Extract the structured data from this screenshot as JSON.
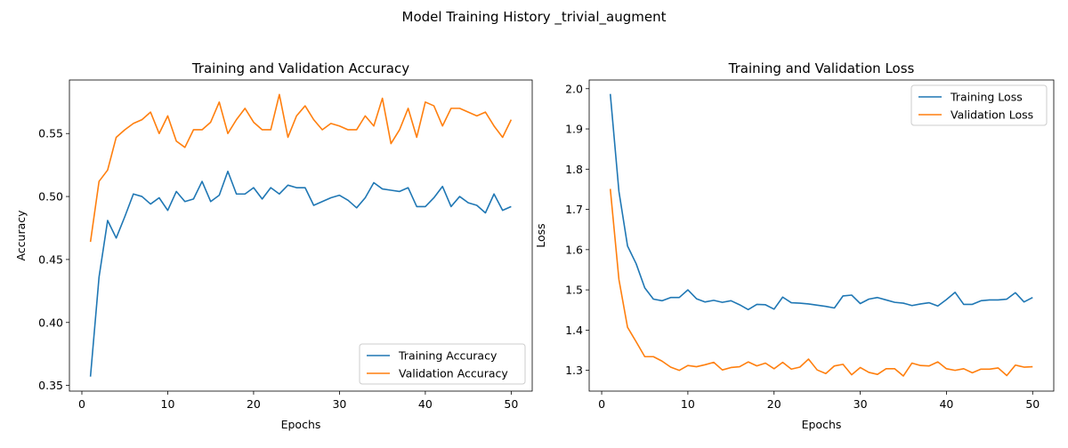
{
  "suptitle": "Model Training History _trivial_augment",
  "colors": {
    "training": "#1f77b4",
    "validation": "#ff7f0e"
  },
  "chart_data": [
    {
      "type": "line",
      "title": "Training and Validation Accuracy",
      "xlabel": "Epochs",
      "ylabel": "Accuracy",
      "xlim": [
        -1.45,
        52.45
      ],
      "ylim": [
        0.3455,
        0.5925
      ],
      "xticks": [
        0,
        10,
        20,
        30,
        40,
        50
      ],
      "yticks": [
        0.35,
        0.4,
        0.45,
        0.5,
        0.55
      ],
      "ytick_labels": [
        "0.35",
        "0.40",
        "0.45",
        "0.50",
        "0.55"
      ],
      "legend_position": "lower right",
      "x": [
        1,
        2,
        3,
        4,
        5,
        6,
        7,
        8,
        9,
        10,
        11,
        12,
        13,
        14,
        15,
        16,
        17,
        18,
        19,
        20,
        21,
        22,
        23,
        24,
        25,
        26,
        27,
        28,
        29,
        30,
        31,
        32,
        33,
        34,
        35,
        36,
        37,
        38,
        39,
        40,
        41,
        42,
        43,
        44,
        45,
        46,
        47,
        48,
        49,
        50
      ],
      "series": [
        {
          "name": "Training Accuracy",
          "values": [
            0.357,
            0.436,
            0.481,
            0.467,
            0.484,
            0.502,
            0.5,
            0.494,
            0.499,
            0.489,
            0.504,
            0.496,
            0.498,
            0.512,
            0.496,
            0.501,
            0.52,
            0.502,
            0.502,
            0.507,
            0.498,
            0.507,
            0.502,
            0.509,
            0.507,
            0.507,
            0.493,
            0.496,
            0.499,
            0.501,
            0.497,
            0.491,
            0.499,
            0.511,
            0.506,
            0.505,
            0.504,
            0.507,
            0.492,
            0.492,
            0.499,
            0.508,
            0.492,
            0.5,
            0.495,
            0.493,
            0.487,
            0.502,
            0.489,
            0.492
          ]
        },
        {
          "name": "Validation Accuracy",
          "values": [
            0.464,
            0.512,
            0.521,
            0.547,
            0.553,
            0.558,
            0.561,
            0.567,
            0.55,
            0.564,
            0.544,
            0.539,
            0.553,
            0.553,
            0.559,
            0.575,
            0.55,
            0.561,
            0.57,
            0.559,
            0.553,
            0.553,
            0.581,
            0.547,
            0.564,
            0.572,
            0.561,
            0.553,
            0.558,
            0.556,
            0.553,
            0.553,
            0.564,
            0.556,
            0.578,
            0.542,
            0.553,
            0.57,
            0.547,
            0.575,
            0.572,
            0.556,
            0.57,
            0.57,
            0.567,
            0.564,
            0.567,
            0.556,
            0.547,
            0.561
          ]
        }
      ]
    },
    {
      "type": "line",
      "title": "Training and Validation Loss",
      "xlabel": "Epochs",
      "ylabel": "Loss",
      "xlim": [
        -1.45,
        52.45
      ],
      "ylim": [
        1.2484,
        2.0216
      ],
      "xticks": [
        0,
        10,
        20,
        30,
        40,
        50
      ],
      "yticks": [
        1.3,
        1.4,
        1.5,
        1.6,
        1.7,
        1.8,
        1.9,
        2.0
      ],
      "ytick_labels": [
        "1.3",
        "1.4",
        "1.5",
        "1.6",
        "1.7",
        "1.8",
        "1.9",
        "2.0"
      ],
      "legend_position": "upper right",
      "x": [
        1,
        2,
        3,
        4,
        5,
        6,
        7,
        8,
        9,
        10,
        11,
        12,
        13,
        14,
        15,
        16,
        17,
        18,
        19,
        20,
        21,
        22,
        23,
        24,
        25,
        26,
        27,
        28,
        29,
        30,
        31,
        32,
        33,
        34,
        35,
        36,
        37,
        38,
        39,
        40,
        41,
        42,
        43,
        44,
        45,
        46,
        47,
        48,
        49,
        50
      ],
      "series": [
        {
          "name": "Training Loss",
          "values": [
            1.987,
            1.745,
            1.609,
            1.565,
            1.505,
            1.477,
            1.473,
            1.481,
            1.481,
            1.5,
            1.478,
            1.47,
            1.474,
            1.469,
            1.473,
            1.463,
            1.451,
            1.464,
            1.463,
            1.452,
            1.482,
            1.468,
            1.467,
            1.465,
            1.462,
            1.459,
            1.455,
            1.485,
            1.487,
            1.466,
            1.477,
            1.481,
            1.475,
            1.469,
            1.467,
            1.461,
            1.465,
            1.468,
            1.46,
            1.476,
            1.494,
            1.464,
            1.464,
            1.473,
            1.475,
            1.475,
            1.477,
            1.493,
            1.47,
            1.481
          ]
        },
        {
          "name": "Validation Loss",
          "values": [
            1.751,
            1.526,
            1.407,
            1.371,
            1.334,
            1.334,
            1.323,
            1.308,
            1.3,
            1.312,
            1.309,
            1.314,
            1.32,
            1.301,
            1.307,
            1.309,
            1.321,
            1.311,
            1.318,
            1.304,
            1.32,
            1.303,
            1.308,
            1.328,
            1.301,
            1.292,
            1.311,
            1.315,
            1.289,
            1.307,
            1.295,
            1.29,
            1.304,
            1.304,
            1.286,
            1.318,
            1.312,
            1.311,
            1.321,
            1.304,
            1.3,
            1.304,
            1.294,
            1.303,
            1.303,
            1.306,
            1.287,
            1.313,
            1.308,
            1.309
          ]
        }
      ]
    }
  ]
}
